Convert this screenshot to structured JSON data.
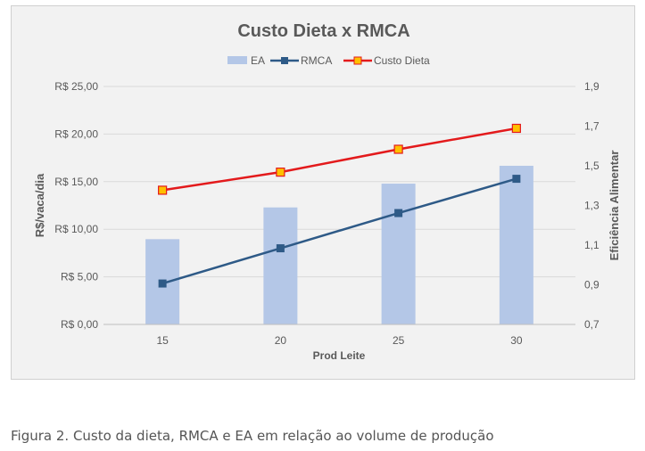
{
  "chart_data": {
    "type": "bar+line",
    "title": "Custo Dieta x RMCA",
    "xlabel": "Prod Leite",
    "ylabel": "R$/vaca/dia",
    "y2label": "Eficiência Alimentar",
    "categories": [
      "15",
      "20",
      "25",
      "30"
    ],
    "ylim": [
      0,
      25
    ],
    "y_ticks": [
      "R$ 0,00",
      "R$ 5,00",
      "R$ 10,00",
      "R$ 15,00",
      "R$ 20,00",
      "R$ 25,00"
    ],
    "y2lim": [
      0.7,
      1.9
    ],
    "y2_ticks": [
      "0,7",
      "0,9",
      "1,1",
      "1,3",
      "1,5",
      "1,7",
      "1,9"
    ],
    "grid": true,
    "legend_position": "top",
    "series": [
      {
        "name": "EA",
        "kind": "bar",
        "axis": "right",
        "color": "#b4c7e7",
        "values": [
          1.13,
          1.29,
          1.41,
          1.5
        ]
      },
      {
        "name": "RMCA",
        "kind": "line",
        "axis": "left",
        "color": "#2e5a87",
        "marker_color": "#2e5a87",
        "values": [
          4.3,
          8.0,
          11.7,
          15.3
        ]
      },
      {
        "name": "Custo Dieta",
        "kind": "line",
        "axis": "left",
        "color": "#e31a1c",
        "marker_color": "#ffc000",
        "values": [
          14.1,
          16.0,
          18.4,
          20.6
        ]
      }
    ]
  },
  "caption": "Figura 2. Custo da dieta, RMCA e EA em relação ao volume de produção"
}
